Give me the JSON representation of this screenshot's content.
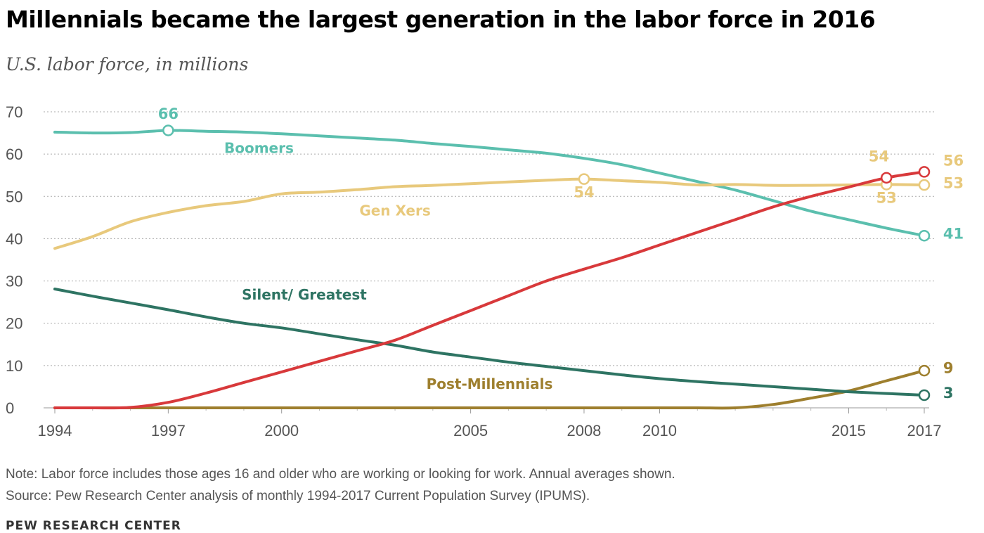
{
  "title": "Millennials became the largest generation in the labor force in 2016",
  "subtitle": "U.S. labor force, in millions",
  "note": "Note: Labor force includes those ages 16 and older who are working or looking for work. Annual averages shown.",
  "source": "Source: Pew Research Center analysis of monthly 1994-2017 Current Population Survey (IPUMS).",
  "brand": "PEW RESEARCH CENTER",
  "chart_data": {
    "type": "line",
    "xlim": [
      1994,
      2017
    ],
    "ylim": [
      0,
      70
    ],
    "grid": true,
    "y_ticks": [
      "0",
      "10",
      "20",
      "30",
      "40",
      "50",
      "60",
      "70"
    ],
    "x_ticks": [
      "1994",
      "1997",
      "2000",
      "2005",
      "2008",
      "2010",
      "2015",
      "2017"
    ],
    "series": [
      {
        "name": "Boomers",
        "color": "#5bbfae",
        "x": [
          1994,
          1995,
          1996,
          1997,
          1998,
          1999,
          2000,
          2001,
          2002,
          2003,
          2004,
          2005,
          2006,
          2007,
          2008,
          2009,
          2010,
          2011,
          2012,
          2013,
          2014,
          2015,
          2016,
          2017
        ],
        "y": [
          65.2,
          65,
          65.1,
          65.6,
          65.4,
          65.2,
          64.8,
          64.3,
          63.8,
          63.3,
          62.5,
          61.8,
          61,
          60.2,
          59,
          57.5,
          55.5,
          53.5,
          51.5,
          49,
          46.5,
          44.5,
          42.5,
          40.7
        ]
      },
      {
        "name": "Gen Xers",
        "color": "#e8c97c",
        "x": [
          1994,
          1995,
          1996,
          1997,
          1998,
          1999,
          2000,
          2001,
          2002,
          2003,
          2004,
          2005,
          2006,
          2007,
          2008,
          2009,
          2010,
          2011,
          2012,
          2013,
          2014,
          2015,
          2016,
          2017
        ],
        "y": [
          37.7,
          40.5,
          44,
          46.2,
          47.8,
          48.8,
          50.6,
          51,
          51.6,
          52.3,
          52.6,
          53,
          53.4,
          53.8,
          54.1,
          53.7,
          53.3,
          52.7,
          52.8,
          52.6,
          52.6,
          52.7,
          52.8,
          52.7
        ]
      },
      {
        "name": "Millennials",
        "color": "#d8393b",
        "x": [
          1994,
          1995,
          1996,
          1997,
          1998,
          1999,
          2000,
          2001,
          2002,
          2003,
          2004,
          2005,
          2006,
          2007,
          2008,
          2009,
          2010,
          2011,
          2012,
          2013,
          2014,
          2015,
          2016,
          2017
        ],
        "y": [
          0,
          0,
          0.1,
          1.3,
          3.5,
          6,
          8.5,
          11,
          13.5,
          16,
          19.5,
          23,
          26.5,
          30,
          32.8,
          35.5,
          38.5,
          41.5,
          44.5,
          47.5,
          50,
          52.2,
          54.4,
          55.8
        ]
      },
      {
        "name": "Silent/ Greatest",
        "color": "#2e7463",
        "x": [
          1994,
          1995,
          1996,
          1997,
          1998,
          1999,
          2000,
          2001,
          2002,
          2003,
          2004,
          2005,
          2006,
          2007,
          2008,
          2009,
          2010,
          2011,
          2012,
          2013,
          2014,
          2015,
          2016,
          2017
        ],
        "y": [
          28.1,
          26.4,
          24.8,
          23.2,
          21.5,
          20,
          18.9,
          17.5,
          16.1,
          14.8,
          13.2,
          12,
          10.8,
          9.8,
          8.8,
          7.8,
          6.9,
          6.2,
          5.6,
          5,
          4.4,
          3.8,
          3.4,
          3
        ]
      },
      {
        "name": "Post-Millennials",
        "color": "#9e7f2e",
        "x": [
          1994,
          1995,
          1996,
          1997,
          1998,
          1999,
          2000,
          2001,
          2002,
          2003,
          2004,
          2005,
          2006,
          2007,
          2008,
          2009,
          2010,
          2011,
          2012,
          2013,
          2014,
          2015,
          2016,
          2017
        ],
        "y": [
          0,
          0,
          0,
          0,
          0,
          0,
          0,
          0,
          0,
          0,
          0,
          0,
          0,
          0,
          0,
          0,
          0,
          0,
          0,
          0.8,
          2.3,
          4,
          6.4,
          8.8
        ]
      }
    ],
    "markers": [
      {
        "series": "Boomers",
        "x": 1997,
        "y": 65.6,
        "color": "#5bbfae"
      },
      {
        "series": "Boomers",
        "x": 2017,
        "y": 40.7,
        "color": "#5bbfae"
      },
      {
        "series": "Gen Xers",
        "x": 2008,
        "y": 54.1,
        "color": "#e8c97c"
      },
      {
        "series": "Gen Xers",
        "x": 2016,
        "y": 52.8,
        "color": "#e8c97c"
      },
      {
        "series": "Gen Xers",
        "x": 2017,
        "y": 52.7,
        "color": "#e8c97c"
      },
      {
        "series": "Millennials",
        "x": 2016,
        "y": 54.4,
        "color": "#d8393b"
      },
      {
        "series": "Millennials",
        "x": 2017,
        "y": 55.8,
        "color": "#d8393b"
      },
      {
        "series": "Silent/ Greatest",
        "x": 2017,
        "y": 3,
        "color": "#2e7463"
      },
      {
        "series": "Post-Millennials",
        "x": 2017,
        "y": 8.8,
        "color": "#9e7f2e"
      }
    ],
    "series_labels": [
      {
        "text": "Boomers",
        "x": 1999.4,
        "y": 60.3,
        "color": "#5bbfae"
      },
      {
        "text": "Gen Xers",
        "x": 2003,
        "y": 45.5,
        "color": "#e8c97c"
      },
      {
        "text": "Silent/ Greatest",
        "x": 2000.6,
        "y": 25.6,
        "color": "#2e7463"
      },
      {
        "text": "Post-Millennials",
        "x": 2005.5,
        "y": 4.5,
        "color": "#9e7f2e"
      }
    ],
    "data_labels": [
      {
        "text": "66",
        "x": 1997,
        "y": 68.3,
        "color": "#5bbfae",
        "anchor": "middle"
      },
      {
        "text": "54",
        "x": 2008,
        "y": 49.8,
        "color": "#e8c97c",
        "anchor": "middle"
      },
      {
        "text": "54",
        "x": 2015.8,
        "y": 58.3,
        "color": "#e8c97c",
        "anchor": "middle"
      },
      {
        "text": "56",
        "x": 2017.5,
        "y": 57.3,
        "color": "#e8c97c",
        "anchor": "start"
      },
      {
        "text": "53",
        "x": 2017.5,
        "y": 52,
        "color": "#e8c97c",
        "anchor": "start"
      },
      {
        "text": "53",
        "x": 2016,
        "y": 48.5,
        "color": "#e8c97c",
        "anchor": "middle"
      },
      {
        "text": "41",
        "x": 2017.5,
        "y": 40,
        "color": "#5bbfae",
        "anchor": "start"
      },
      {
        "text": "9",
        "x": 2017.5,
        "y": 8.2,
        "color": "#9e7f2e",
        "anchor": "start"
      },
      {
        "text": "3",
        "x": 2017.5,
        "y": 2.3,
        "color": "#2e7463",
        "anchor": "start"
      }
    ]
  }
}
